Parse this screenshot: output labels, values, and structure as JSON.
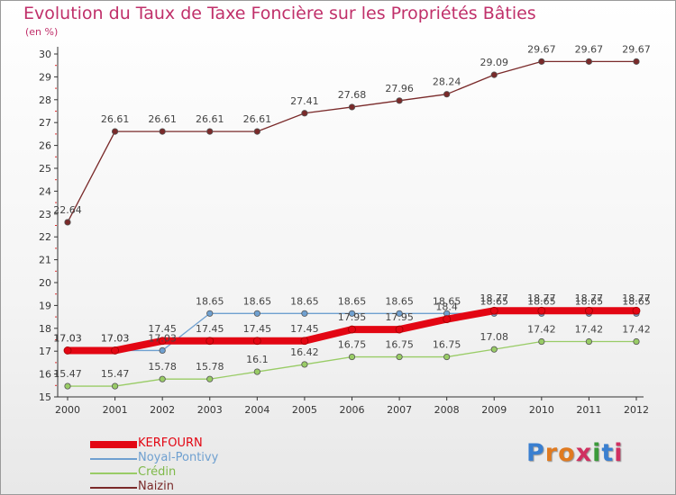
{
  "chart_data": {
    "type": "line",
    "title": "Evolution du Taux de Taxe Foncière sur les Propriétés Bâties",
    "ylabel": "(en %)",
    "x": [
      "2000",
      "2001",
      "2002",
      "2003",
      "2004",
      "2005",
      "2006",
      "2007",
      "2008",
      "2009",
      "2010",
      "2011",
      "2012"
    ],
    "ylim": [
      15,
      30
    ],
    "yticks": [
      "15",
      "16",
      "17",
      "18",
      "19",
      "20",
      "21",
      "22",
      "23",
      "24",
      "25",
      "26",
      "27",
      "28",
      "29",
      "30"
    ],
    "grid": false,
    "legend_position": "bottom-left",
    "series": [
      {
        "name": "KERFOURN",
        "color": "#e30613",
        "values": [
          17.03,
          17.03,
          17.45,
          17.45,
          17.45,
          17.45,
          17.95,
          17.95,
          18.4,
          18.77,
          18.77,
          18.77,
          18.77
        ],
        "labels": [
          "17.03",
          "17.03",
          "17.45",
          "17.45",
          "17.45",
          "17.45",
          "17.95",
          "17.95",
          "18.4",
          "18.77",
          "18.77",
          "18.77",
          "18.77"
        ]
      },
      {
        "name": "Noyal-Pontivy",
        "color": "#6fa0d0",
        "values": [
          17.03,
          17.03,
          17.03,
          18.65,
          18.65,
          18.65,
          18.65,
          18.65,
          18.65,
          18.65,
          18.65,
          18.65,
          18.65
        ],
        "labels": [
          "17.03",
          "17.03",
          "17.03",
          "18.65",
          "18.65",
          "18.65",
          "18.65",
          "18.65",
          "18.65",
          "18.65",
          "18.65",
          "18.65",
          "18.65"
        ]
      },
      {
        "name": "Crédin",
        "color": "#99cc66",
        "values": [
          15.47,
          15.47,
          15.78,
          15.78,
          16.1,
          16.42,
          16.75,
          16.75,
          16.75,
          17.08,
          17.42,
          17.42,
          17.42
        ],
        "labels": [
          "15.47",
          "15.47",
          "15.78",
          "15.78",
          "16.1",
          "16.42",
          "16.75",
          "16.75",
          "16.75",
          "17.08",
          "17.42",
          "17.42",
          "17.42"
        ]
      },
      {
        "name": "Naizin",
        "color": "#7a2a2a",
        "values": [
          22.64,
          26.61,
          26.61,
          26.61,
          26.61,
          27.41,
          27.68,
          27.96,
          28.24,
          29.09,
          29.67,
          29.67,
          29.67
        ],
        "labels": [
          "22.64",
          "26.61",
          "26.61",
          "26.61",
          "26.61",
          "27.41",
          "27.68",
          "27.96",
          "28.24",
          "29.09",
          "29.67",
          "29.67",
          "29.67"
        ]
      }
    ]
  },
  "logo": {
    "letters": [
      "P",
      "r",
      "o",
      "x",
      "i",
      "t",
      "i"
    ],
    "colors": [
      "#3a7fd0",
      "#e07a20",
      "#e07a20",
      "#d03060",
      "#3a9a3a",
      "#3a7fd0",
      "#d03060"
    ]
  }
}
